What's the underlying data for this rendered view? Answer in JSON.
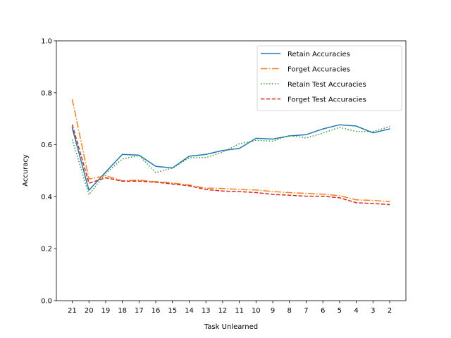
{
  "chart_data": {
    "type": "line",
    "title": "",
    "xlabel": "Task Unlearned",
    "ylabel": "Accuracy",
    "ylim": [
      0.0,
      1.0
    ],
    "yticks": [
      "0.0",
      "0.2",
      "0.4",
      "0.6",
      "0.8",
      "1.0"
    ],
    "categories": [
      "21",
      "20",
      "19",
      "18",
      "17",
      "16",
      "15",
      "14",
      "13",
      "12",
      "11",
      "10",
      "9",
      "8",
      "7",
      "6",
      "5",
      "4",
      "3",
      "2"
    ],
    "legend_position": "top-right",
    "grid": false,
    "series": [
      {
        "name": "Retain Accuracies",
        "color": "#1f77b4",
        "dash": "solid",
        "values": [
          0.665,
          0.425,
          0.495,
          0.563,
          0.56,
          0.517,
          0.511,
          0.556,
          0.563,
          0.578,
          0.586,
          0.625,
          0.622,
          0.634,
          0.639,
          0.661,
          0.677,
          0.672,
          0.646,
          0.661
        ]
      },
      {
        "name": "Forget Accuracies",
        "color": "#ff7f0e",
        "dash": "dashdot",
        "values": [
          0.775,
          0.468,
          0.481,
          0.461,
          0.464,
          0.458,
          0.453,
          0.445,
          0.433,
          0.432,
          0.428,
          0.426,
          0.42,
          0.416,
          0.413,
          0.41,
          0.404,
          0.388,
          0.386,
          0.381
        ]
      },
      {
        "name": "Retain Test Accuracies",
        "color": "#2ca02c",
        "dash": "dotted",
        "values": [
          0.62,
          0.408,
          0.49,
          0.545,
          0.559,
          0.493,
          0.51,
          0.55,
          0.551,
          0.571,
          0.604,
          0.617,
          0.614,
          0.636,
          0.626,
          0.645,
          0.667,
          0.651,
          0.651,
          0.67
        ]
      },
      {
        "name": "Forget Test Accuracies",
        "color": "#d62728",
        "dash": "dashed",
        "values": [
          0.678,
          0.452,
          0.473,
          0.46,
          0.46,
          0.456,
          0.449,
          0.442,
          0.428,
          0.422,
          0.42,
          0.416,
          0.409,
          0.406,
          0.402,
          0.402,
          0.396,
          0.377,
          0.374,
          0.37
        ]
      }
    ]
  }
}
